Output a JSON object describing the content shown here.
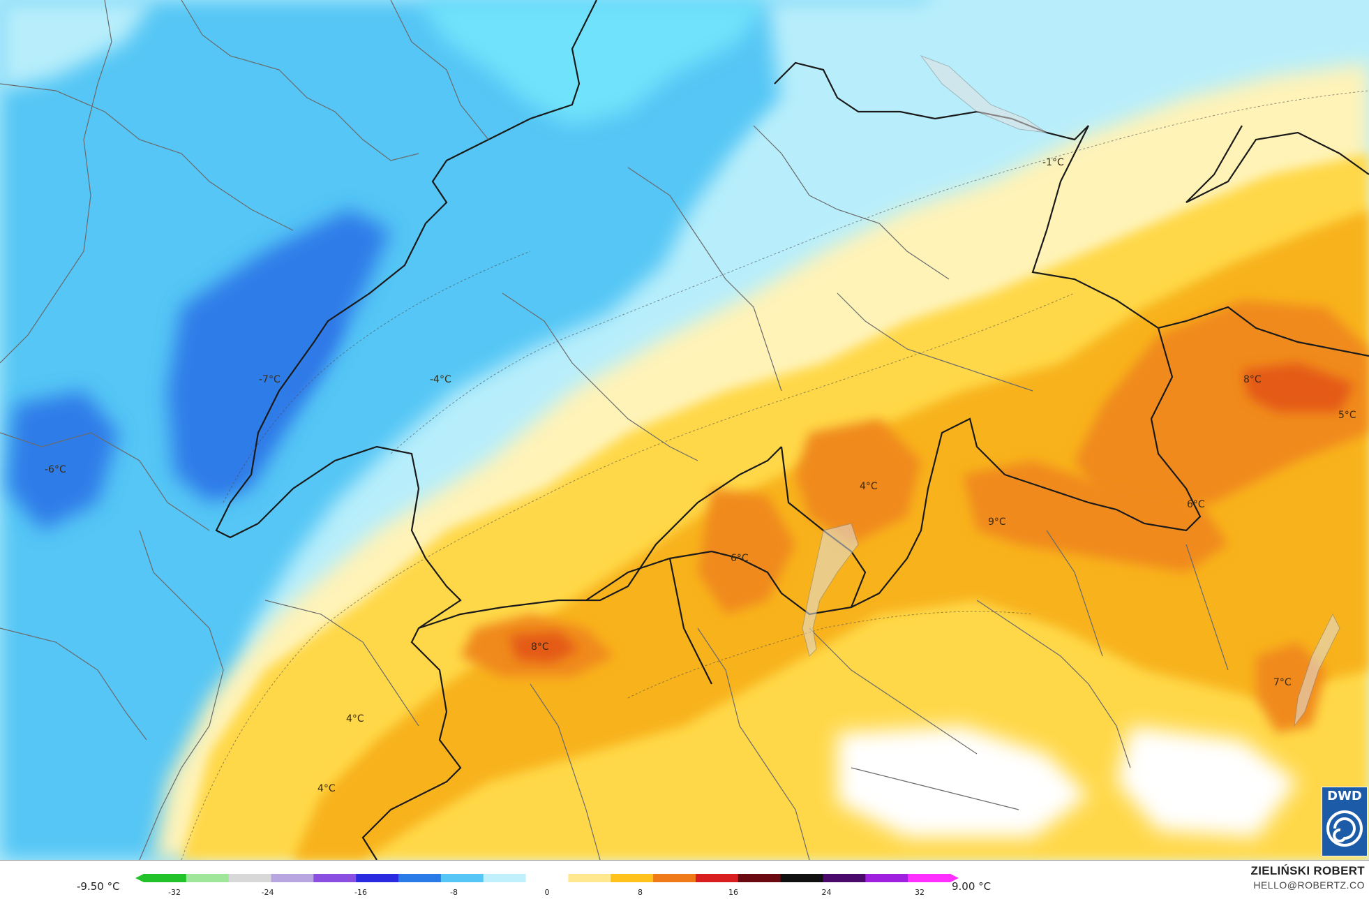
{
  "map": {
    "colors": {
      "deep_cold": "#1a2bdc",
      "cold": "#2f7be8",
      "cool": "#55c6f5",
      "cool_light": "#6fe2fb",
      "pale_blue": "#b8eefb",
      "neutral": "#ffffff",
      "pale_yellow": "#fff3b8",
      "yellow": "#ffd84a",
      "gold": "#f8b21d",
      "orange": "#f08a1c",
      "red_orange": "#e45a18"
    },
    "labels": [
      {
        "text": "-7°C"
      },
      {
        "text": "-4°C"
      },
      {
        "text": "-6°C"
      },
      {
        "text": "-1°C"
      },
      {
        "text": "8°C"
      },
      {
        "text": "5°C"
      },
      {
        "text": "4°C"
      },
      {
        "text": "6°C"
      },
      {
        "text": "9°C"
      },
      {
        "text": "6°C"
      },
      {
        "text": "8°C"
      },
      {
        "text": "7°C"
      },
      {
        "text": "4°C"
      },
      {
        "text": "4°C"
      }
    ]
  },
  "legend": {
    "min_label": "-9.50 °C",
    "max_label": "9.00 °C",
    "ticks": [
      "-32",
      "-24",
      "-16",
      "-8",
      "0",
      "8",
      "16",
      "24",
      "32"
    ],
    "gradient_colors": [
      "#22c22a",
      "#9fe59a",
      "#d8d8d8",
      "#b8a6e0",
      "#8a4fe0",
      "#2a2ae0",
      "#2a7be8",
      "#55c6f5",
      "#bff0fb",
      "#ffffff",
      "#ffe890",
      "#ffc21d",
      "#f07a18",
      "#d81e1e",
      "#6a0a10",
      "#101010",
      "#4a0a6a",
      "#a020e0",
      "#ff30ff"
    ]
  },
  "credits": {
    "name": "ZIELIŃSKI ROBERT",
    "email": "HELLO@ROBERTZ.CO"
  },
  "logo": {
    "text": "DWD"
  }
}
